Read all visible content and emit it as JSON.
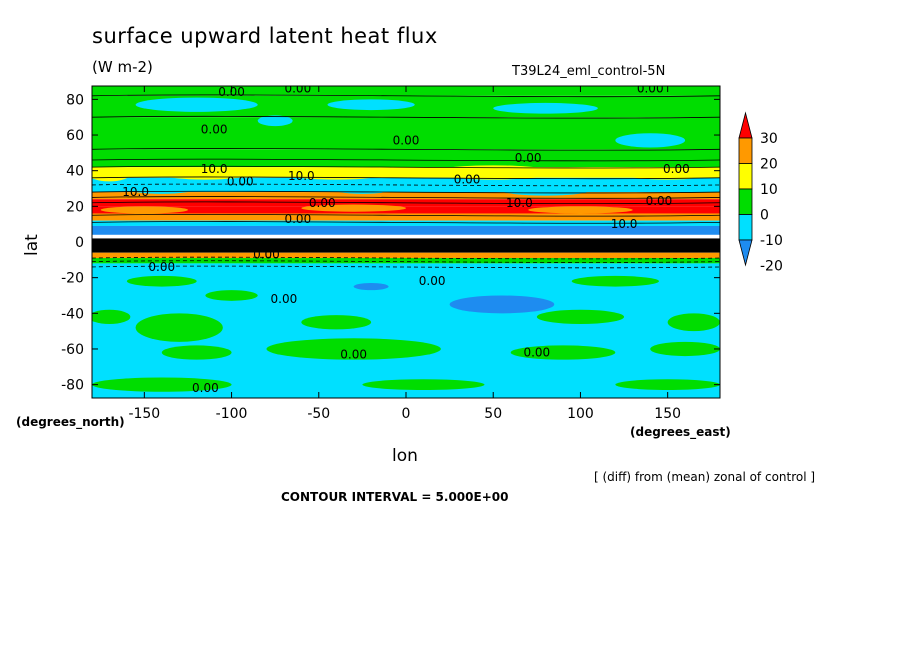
{
  "chart_data": {
    "type": "contour",
    "title": "surface upward latent heat flux",
    "units": "(W m-2)",
    "run_label": "T39L24_eml_control-5N",
    "xlabel": "lon",
    "ylabel": "lat",
    "x_units_label": "(degrees_east)",
    "y_units_label": "(degrees_north)",
    "xlim": [
      -180,
      180
    ],
    "ylim": [
      -87.5,
      87.5
    ],
    "x_ticks": [
      -150,
      -100,
      -50,
      0,
      50,
      100,
      150
    ],
    "x_tick_labels": [
      "-150",
      "-100",
      "-50",
      "0",
      "50",
      "100",
      "150"
    ],
    "y_ticks": [
      -80,
      -60,
      -40,
      -20,
      0,
      20,
      40,
      60,
      80
    ],
    "y_tick_labels": [
      "-80",
      "-60",
      "-40",
      "-20",
      "0",
      "20",
      "40",
      "60",
      "80"
    ],
    "colorbar": {
      "levels": [
        -20,
        -10,
        0,
        10,
        20,
        30
      ],
      "level_labels": [
        "-20",
        "-10",
        "0",
        "10",
        "20",
        "30"
      ],
      "colors": [
        "#1e8cf0",
        "#00e0ff",
        "#00dd00",
        "#ffff00",
        "#ff9900",
        "#ff0000"
      ],
      "extend": "both"
    },
    "contour_labels": [
      "0.00",
      "0.00",
      "0.00",
      "0.00",
      "0.00",
      "0.00",
      "10.0",
      "0.00",
      "10.0",
      "0.00",
      "0.00",
      "10.0",
      "0.00",
      "10.0",
      "0.00",
      "0.00",
      "10.0",
      "0.00",
      "0.00",
      "0.00",
      "0.00",
      "0.00",
      "0.00",
      "0.00"
    ],
    "note": "[ (diff) from (mean) zonal of control ]",
    "contour_interval": "CONTOUR INTERVAL = 5.000E+00"
  }
}
